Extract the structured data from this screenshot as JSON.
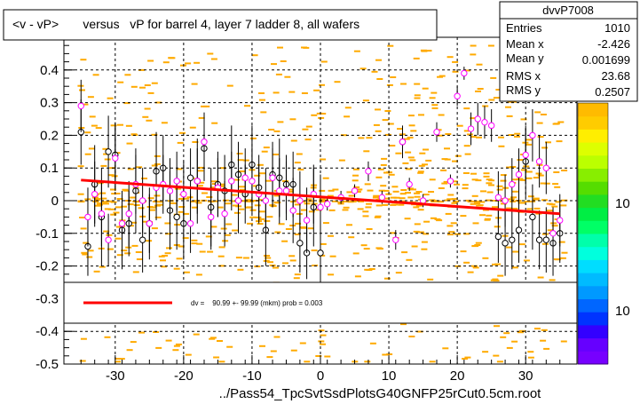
{
  "title": "<v - vP>       versus   vP for barrel 4, layer 7 ladder 8, all wafers",
  "footer": "../Pass54_TpcSvtSsdPlotsG40GNFP25rCut0.5cm.root",
  "stats": {
    "name": "dvvP7008",
    "rows": [
      {
        "label": "Entries",
        "value": "1010"
      },
      {
        "label": "Mean x",
        "value": "-2.426"
      },
      {
        "label": "Mean y",
        "value": "0.001699"
      },
      {
        "label": "RMS x",
        "value": "23.68"
      },
      {
        "label": "RMS y",
        "value": "0.2507"
      }
    ]
  },
  "legend": {
    "text": "dv =    90.99 +- 99.99 (mkm) prob = 0.003",
    "color": "#ff0000"
  },
  "palette_labels": [
    "10",
    "10"
  ],
  "chart_data": {
    "type": "scatter",
    "title": "<v - vP>       versus   vP for barrel 4, layer 7 ladder 8, all wafers",
    "xlabel": "",
    "ylabel": "",
    "xlim": [
      -37.5,
      37.5
    ],
    "ylim": [
      -0.5,
      0.5
    ],
    "x_ticks": [
      -30,
      -20,
      -10,
      0,
      10,
      20,
      30
    ],
    "y_ticks": [
      -0.5,
      -0.4,
      -0.3,
      -0.2,
      -0.1,
      0,
      0.1,
      0.2,
      0.3,
      0.4
    ],
    "grid": true,
    "fit_line": {
      "x": [
        -35,
        35
      ],
      "y": [
        0.063,
        -0.04
      ],
      "color": "#ff0000"
    },
    "series": [
      {
        "marker": "open-circle",
        "color": "#000000",
        "x": [
          -35,
          -34,
          -33,
          -32,
          -31,
          -30,
          -29,
          -28,
          -27,
          -26,
          -25,
          -24,
          -23,
          -22,
          -21,
          -20,
          -19,
          -18,
          -17,
          -16,
          -15,
          -14,
          -13,
          -12,
          -11,
          -10,
          -9,
          -8,
          -7,
          -6,
          -5,
          -4,
          -3,
          -2,
          -1,
          0,
          12,
          26,
          27,
          28,
          29,
          30,
          31,
          32,
          33,
          34,
          35
        ],
        "y": [
          0.21,
          -0.14,
          0.05,
          -0.05,
          0.15,
          0.14,
          -0.09,
          -0.07,
          0.03,
          -0.12,
          -0.07,
          0.09,
          0.1,
          -0.03,
          -0.05,
          -0.07,
          0.07,
          0.06,
          0.16,
          -0.02,
          0.05,
          0.03,
          0.11,
          0.08,
          0.02,
          0.11,
          0.04,
          -0.09,
          0.08,
          0.07,
          0.05,
          0.05,
          -0.13,
          -0.16,
          -0.02,
          -0.16,
          0.18,
          -0.11,
          -0.13,
          -0.12,
          -0.09,
          0.12,
          -0.05,
          -0.12,
          -0.12,
          -0.13,
          -0.1
        ],
        "y_err": [
          0.1,
          0.09,
          0.12,
          0.15,
          0.11,
          0.1,
          0.12,
          0.1,
          0.13,
          0.1,
          0.11,
          0.12,
          0.1,
          0.12,
          0.1,
          0.11,
          0.09,
          0.13,
          0.1,
          0.12,
          0.1,
          0.11,
          0.12,
          0.1,
          0.09,
          0.12,
          0.1,
          0.11,
          0.1,
          0.12,
          0.09,
          0.1,
          0.09,
          0.08,
          0.12,
          0.1,
          0.05,
          0.08,
          0.1,
          0.09,
          0.1,
          0.11,
          0.1,
          0.09,
          0.1,
          0.1,
          0.09
        ]
      },
      {
        "marker": "open-circle",
        "color": "#ff00ff",
        "x": [
          -35,
          -34,
          -33,
          -32,
          -31,
          -30,
          -29,
          -28,
          -27,
          -26,
          -25,
          -24,
          -23,
          -22,
          -21,
          -20,
          -19,
          -18,
          -17,
          -16,
          -15,
          -14,
          -13,
          -12,
          -11,
          -10,
          -9,
          -8,
          -7,
          -6,
          -5,
          -4,
          -3,
          -2,
          -1,
          0,
          1,
          3,
          5,
          7,
          9,
          11,
          12,
          13,
          15,
          17,
          19,
          20,
          21,
          22,
          23,
          24,
          25,
          26,
          27,
          28,
          29,
          30,
          31,
          32,
          33,
          34,
          35
        ],
        "y": [
          0.29,
          -0.05,
          0.02,
          -0.04,
          -0.12,
          0.13,
          -0.07,
          -0.04,
          0.05,
          0.0,
          -0.07,
          0.04,
          0.05,
          0.03,
          0.06,
          0.02,
          -0.07,
          0.06,
          0.18,
          -0.05,
          0.04,
          -0.04,
          0.06,
          0.0,
          0.07,
          0.06,
          0.02,
          0.0,
          0.07,
          0.03,
          0.03,
          -0.03,
          0.0,
          -0.06,
          0.02,
          -0.02,
          -0.01,
          0.01,
          0.03,
          0.09,
          0.01,
          -0.12,
          0.18,
          0.05,
          0.0,
          0.21,
          0.06,
          0.32,
          0.39,
          0.22,
          0.25,
          0.24,
          0.23,
          0.01,
          0.0,
          0.05,
          0.08,
          0.14,
          0.2,
          0.12,
          0.1,
          -0.1,
          -0.06
        ],
        "y_err": [
          0.08,
          0.09,
          0.1,
          0.1,
          0.08,
          0.1,
          0.09,
          0.1,
          0.09,
          0.1,
          0.09,
          0.1,
          0.09,
          0.1,
          0.09,
          0.1,
          0.09,
          0.1,
          0.09,
          0.1,
          0.09,
          0.1,
          0.09,
          0.1,
          0.09,
          0.1,
          0.09,
          0.1,
          0.09,
          0.1,
          0.09,
          0.1,
          0.09,
          0.1,
          0.09,
          0.1,
          0.02,
          0.02,
          0.02,
          0.03,
          0.02,
          0.03,
          0.03,
          0.02,
          0.02,
          0.03,
          0.02,
          0.03,
          0.02,
          0.05,
          0.05,
          0.05,
          0.05,
          0.08,
          0.08,
          0.08,
          0.08,
          0.08,
          0.08,
          0.08,
          0.08,
          0.08,
          0.08
        ]
      }
    ]
  }
}
